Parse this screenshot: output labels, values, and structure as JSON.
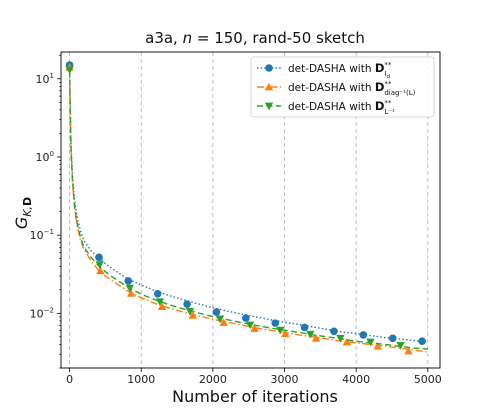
{
  "chart_data": {
    "type": "line",
    "title_parts": {
      "prefix": "a3a, ",
      "var": "n",
      "suffix": " = 150, rand-50 sketch"
    },
    "xlabel": "Number of iterations",
    "ylabel_parts": {
      "main": "G",
      "sub_italic": "K,",
      "sub_bold": "D"
    },
    "xlim": [
      -120,
      5170
    ],
    "ylim": [
      0.002,
      22
    ],
    "yscale": "log",
    "grid": {
      "x": true,
      "y": false
    },
    "x_ticks": [
      0,
      1000,
      2000,
      3000,
      4000,
      5000
    ],
    "x_tick_labels": [
      "0",
      "1000",
      "2000",
      "3000",
      "4000",
      "5000"
    ],
    "y_ticks": [
      0.01,
      0.1,
      1,
      10
    ],
    "y_tick_labels": [
      {
        "base": "10",
        "exp": "−2"
      },
      {
        "base": "10",
        "exp": "−1"
      },
      {
        "base": "10",
        "exp": "0"
      },
      {
        "base": "10",
        "exp": "1"
      }
    ],
    "legend_position": "top-right",
    "series": [
      {
        "name_parts": {
          "text": "det-DASHA with ",
          "bold": "D",
          "sup": "**",
          "sub": "I",
          "subsub": "d"
        },
        "color": "#1f77b4",
        "marker": "circle",
        "linestyle": "dotted",
        "x": [
          0,
          10,
          20,
          40,
          70,
          100,
          150,
          200,
          300,
          400,
          500,
          600,
          800,
          1000,
          1200,
          1400,
          1600,
          1800,
          2000,
          2200,
          2400,
          2600,
          2800,
          3000,
          3200,
          3400,
          3600,
          3800,
          4000,
          4200,
          4400,
          4600,
          4800,
          5000
        ],
        "y": [
          15,
          4.0,
          1.5,
          0.58,
          0.28,
          0.18,
          0.115,
          0.085,
          0.063,
          0.052,
          0.043,
          0.037,
          0.028,
          0.023,
          0.0193,
          0.0168,
          0.0148,
          0.0132,
          0.0118,
          0.0107,
          0.0098,
          0.009,
          0.0083,
          0.0077,
          0.0072,
          0.0067,
          0.0062,
          0.0058,
          0.0055,
          0.0052,
          0.0049,
          0.0047,
          0.0045,
          0.0043
        ],
        "marker_x": [
          0,
          410,
          820,
          1230,
          1640,
          2050,
          2460,
          2870,
          3280,
          3690,
          4100,
          4510,
          4920
        ],
        "marker_y": [
          15,
          0.052,
          0.026,
          0.0178,
          0.0131,
          0.0104,
          0.0087,
          0.0075,
          0.0066,
          0.0059,
          0.0053,
          0.0048,
          0.0044
        ]
      },
      {
        "name_parts": {
          "text": "det-DASHA with ",
          "bold": "D",
          "sup": "**",
          "sub": "diag⁻¹(L)"
        },
        "color": "#ff7f0e",
        "marker": "triangle-up",
        "linestyle": "dashdot",
        "x": [
          0,
          10,
          20,
          40,
          70,
          100,
          150,
          200,
          300,
          400,
          500,
          600,
          800,
          1000,
          1200,
          1400,
          1600,
          1800,
          2000,
          2200,
          2400,
          2600,
          2800,
          3000,
          3200,
          3400,
          3600,
          3800,
          4000,
          4200,
          4400,
          4600,
          4800,
          5000
        ],
        "y": [
          14,
          3.6,
          1.3,
          0.48,
          0.22,
          0.14,
          0.088,
          0.066,
          0.047,
          0.036,
          0.03,
          0.026,
          0.0195,
          0.0158,
          0.0133,
          0.0116,
          0.0103,
          0.0093,
          0.0084,
          0.0077,
          0.0071,
          0.0065,
          0.0061,
          0.0057,
          0.0053,
          0.005,
          0.0047,
          0.0044,
          0.0042,
          0.004,
          0.0038,
          0.0036,
          0.0034,
          0.0032
        ],
        "marker_x": [
          0,
          430,
          860,
          1290,
          1720,
          2150,
          2580,
          3010,
          3440,
          3870,
          4300,
          4730
        ],
        "marker_y": [
          14,
          0.035,
          0.018,
          0.0122,
          0.0094,
          0.0076,
          0.0064,
          0.0055,
          0.0048,
          0.0043,
          0.0038,
          0.0033
        ]
      },
      {
        "name_parts": {
          "text": "det-DASHA with ",
          "bold": "D",
          "sup": "**",
          "sub": "L⁻¹"
        },
        "color": "#2ca02c",
        "marker": "triangle-down",
        "linestyle": "dashed",
        "x": [
          0,
          10,
          20,
          40,
          70,
          100,
          150,
          200,
          300,
          400,
          500,
          600,
          800,
          1000,
          1200,
          1400,
          1600,
          1800,
          2000,
          2200,
          2400,
          2600,
          2800,
          3000,
          3200,
          3400,
          3600,
          3800,
          4000,
          4200,
          4400,
          4600,
          4800,
          5000
        ],
        "y": [
          13,
          3.4,
          1.25,
          0.5,
          0.235,
          0.15,
          0.095,
          0.071,
          0.052,
          0.041,
          0.034,
          0.029,
          0.022,
          0.0176,
          0.0148,
          0.0128,
          0.0113,
          0.0101,
          0.0091,
          0.0083,
          0.0076,
          0.007,
          0.0065,
          0.0061,
          0.0057,
          0.0053,
          0.005,
          0.0047,
          0.0044,
          0.0042,
          0.004,
          0.0038,
          0.0036,
          0.0035
        ],
        "marker_x": [
          0,
          420,
          840,
          1260,
          1680,
          2100,
          2520,
          2940,
          3360,
          3780,
          4200,
          4620
        ],
        "marker_y": [
          13,
          0.042,
          0.021,
          0.0141,
          0.0106,
          0.0085,
          0.0071,
          0.0061,
          0.0054,
          0.0048,
          0.0043,
          0.0039
        ]
      }
    ]
  }
}
